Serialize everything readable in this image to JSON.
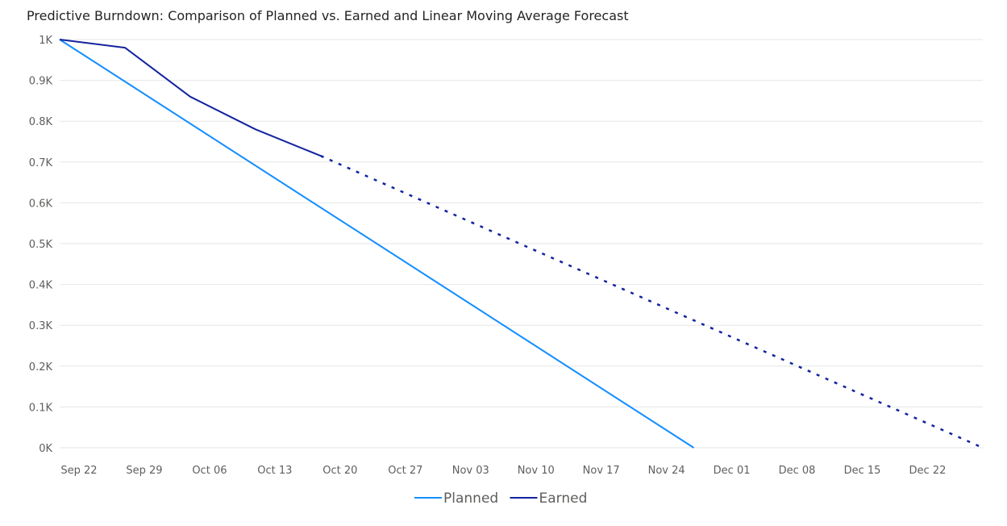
{
  "chart_data": {
    "type": "line",
    "title": "Predictive Burndown: Comparison of Planned vs. Earned and Linear Moving Average Forecast",
    "x_ticks": [
      "Sep 22",
      "Sep 29",
      "Oct 06",
      "Oct 13",
      "Oct 20",
      "Oct 27",
      "Nov 03",
      "Nov 10",
      "Nov 17",
      "Nov 24",
      "Dec 01",
      "Dec 08",
      "Dec 15",
      "Dec 22"
    ],
    "y_ticks": [
      "0K",
      "0.1K",
      "0.2K",
      "0.3K",
      "0.4K",
      "0.5K",
      "0.6K",
      "0.7K",
      "0.8K",
      "0.9K",
      "1K"
    ],
    "ylim": [
      0,
      1000
    ],
    "xlim": [
      "2019-09-22",
      "2019-12-30"
    ],
    "grid": true,
    "legend_position": "bottom-center",
    "series": [
      {
        "name": "Planned",
        "color": "#118DFF",
        "style": "solid",
        "points": [
          [
            "2019-09-22",
            1000
          ],
          [
            "2019-11-29",
            0
          ]
        ]
      },
      {
        "name": "Earned",
        "color": "#12239E",
        "style": "solid",
        "points": [
          [
            "2019-09-22",
            1000
          ],
          [
            "2019-09-29",
            980
          ],
          [
            "2019-10-06",
            860
          ],
          [
            "2019-10-13",
            780
          ],
          [
            "2019-10-20",
            715
          ]
        ]
      },
      {
        "name": "",
        "color": "#12239E",
        "style": "dotted",
        "points": [
          [
            "2019-10-20",
            715
          ],
          [
            "2019-12-30",
            0
          ]
        ]
      }
    ]
  }
}
